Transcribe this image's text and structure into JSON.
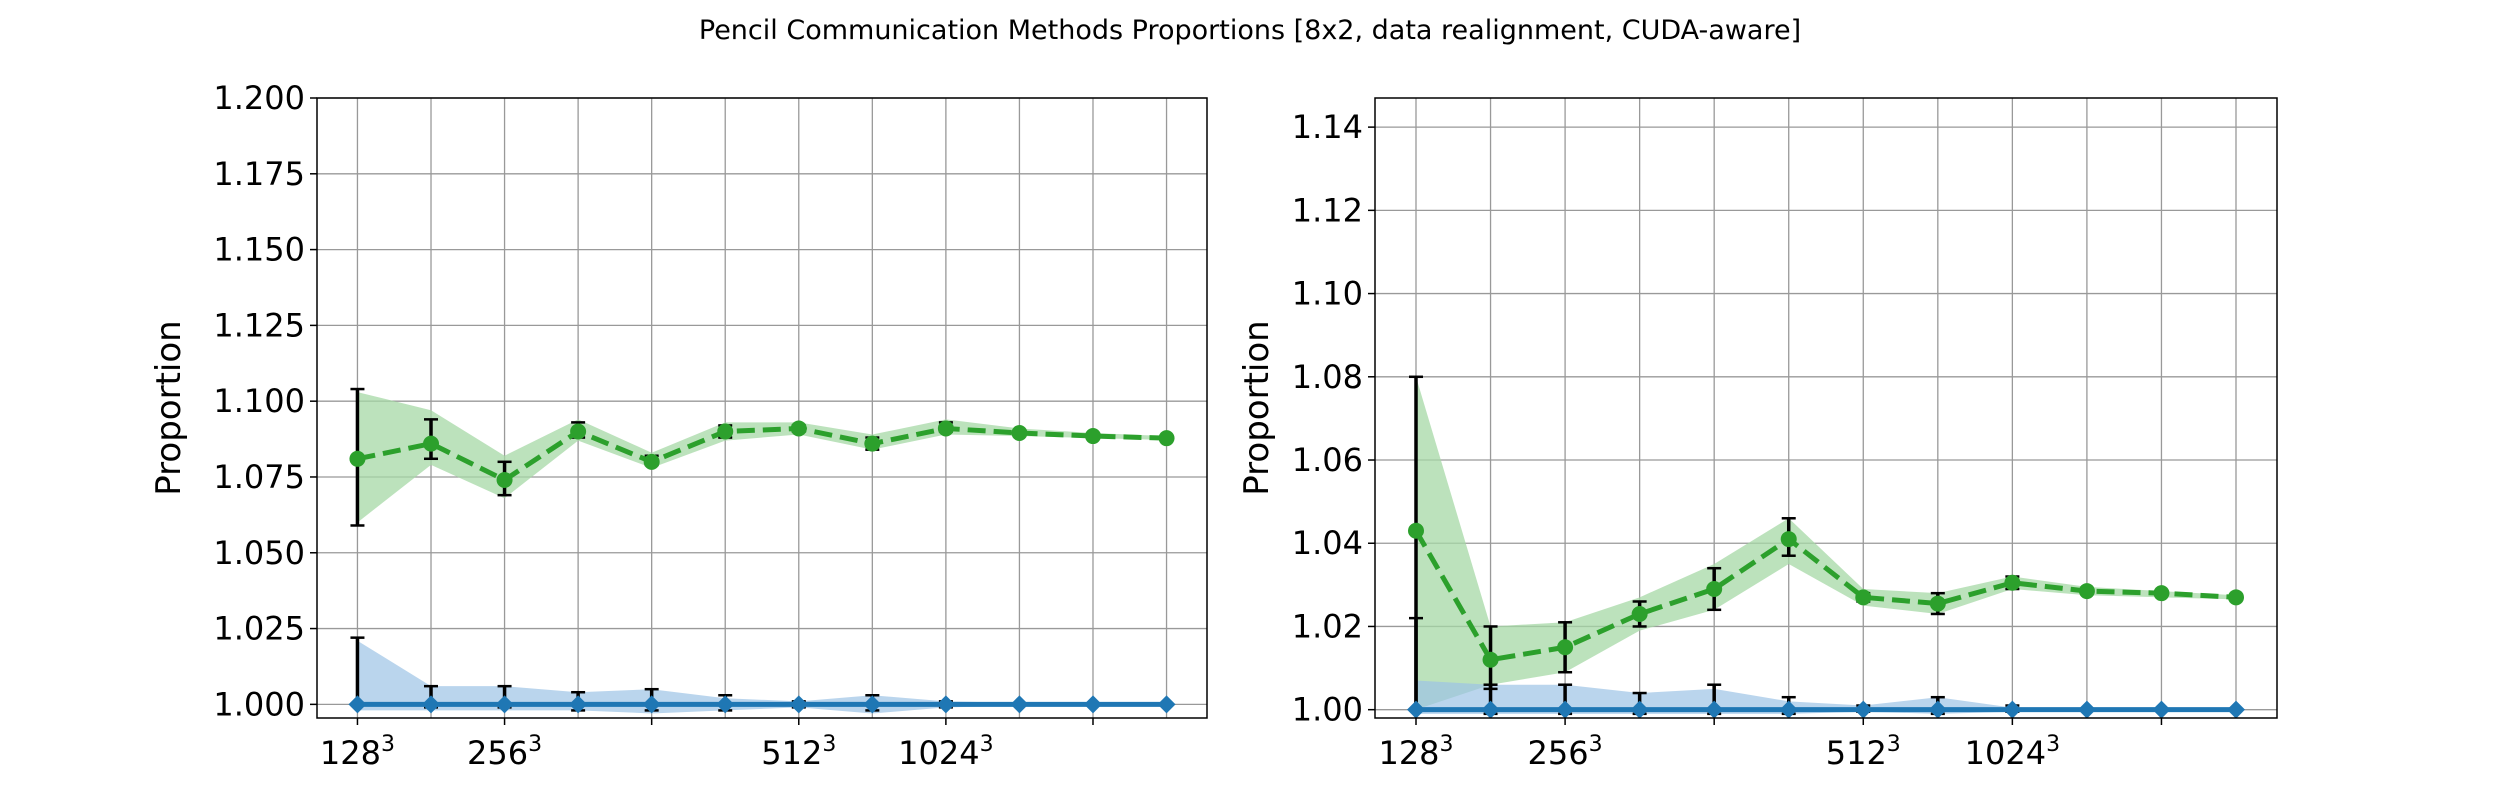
{
  "figure": {
    "title": "Pencil Communication Methods Proportions [8x2, data realignment, CUDA-aware]"
  },
  "colors": {
    "green": "#2ca02c",
    "green_band": "#a6d8a6",
    "blue": "#1f77b4",
    "blue_band": "#9dc3e6",
    "grid": "#999999",
    "errorbar": "#000000"
  },
  "chart_data": [
    {
      "type": "line",
      "ylabel": "Proportion",
      "xlabel": "",
      "x": [
        0,
        1,
        2,
        3,
        4,
        5,
        6,
        7,
        8,
        9,
        10,
        11
      ],
      "xlim": [
        -0.55,
        11.55
      ],
      "ylim": [
        0.9955,
        1.2
      ],
      "xticks": [
        {
          "x": 0,
          "base": "128",
          "exp": "3"
        },
        {
          "x": 2,
          "base": "256",
          "exp": "3"
        },
        {
          "x": 4,
          "base": "",
          "exp": ""
        },
        {
          "x": 6,
          "base": "512",
          "exp": "3"
        },
        {
          "x": 8,
          "base": "1024",
          "exp": "3"
        },
        {
          "x": 10,
          "base": "",
          "exp": ""
        }
      ],
      "yticks": [
        {
          "v": 1.0,
          "label": "1.000"
        },
        {
          "v": 1.025,
          "label": "1.025"
        },
        {
          "v": 1.05,
          "label": "1.050"
        },
        {
          "v": 1.075,
          "label": "1.075"
        },
        {
          "v": 1.1,
          "label": "1.100"
        },
        {
          "v": 1.125,
          "label": "1.125"
        },
        {
          "v": 1.15,
          "label": "1.150"
        },
        {
          "v": 1.175,
          "label": "1.175"
        },
        {
          "v": 1.2,
          "label": "1.200"
        }
      ],
      "grid": true,
      "series": [
        {
          "color": "green",
          "style": "dashed",
          "marker": "circle",
          "values": [
            1.081,
            1.086,
            1.074,
            1.09,
            1.08,
            1.09,
            1.091,
            1.086,
            1.091,
            1.0895,
            1.0885,
            1.0878
          ],
          "err_low": [
            1.059,
            1.081,
            1.069,
            1.088,
            1.079,
            1.088,
            1.09,
            1.084,
            1.09,
            1.0895,
            1.0885,
            1.0878
          ],
          "err_high": [
            1.104,
            1.094,
            1.08,
            1.093,
            1.082,
            1.092,
            1.092,
            1.088,
            1.093,
            1.0895,
            1.0885,
            1.0878
          ],
          "band_low": [
            1.06,
            1.079,
            1.068,
            1.087,
            1.078,
            1.087,
            1.089,
            1.084,
            1.089,
            1.0885,
            1.0878,
            1.0872
          ],
          "band_high": [
            1.103,
            1.097,
            1.082,
            1.094,
            1.083,
            1.093,
            1.093,
            1.089,
            1.094,
            1.091,
            1.0895,
            1.0885
          ]
        },
        {
          "color": "blue",
          "style": "solid",
          "marker": "diamond",
          "values": [
            1.0,
            1.0,
            1.0,
            1.0,
            1.0,
            1.0,
            1.0,
            1.0,
            1.0,
            1.0,
            1.0,
            1.0
          ],
          "err_low": [
            1.0,
            0.999,
            0.999,
            0.998,
            0.998,
            0.998,
            0.999,
            0.998,
            0.999,
            1.0,
            1.0,
            1.0
          ],
          "err_high": [
            1.022,
            1.006,
            1.006,
            1.004,
            1.005,
            1.003,
            1.001,
            1.003,
            1.001,
            1.0,
            1.0,
            1.0
          ],
          "band_low": [
            0.998,
            0.998,
            0.998,
            0.998,
            0.997,
            0.998,
            0.999,
            0.997,
            0.999,
            0.9995,
            0.9995,
            0.9995
          ],
          "band_high": [
            1.021,
            1.006,
            1.006,
            1.004,
            1.005,
            1.002,
            1.001,
            1.003,
            1.001,
            1.0005,
            1.0005,
            1.0005
          ]
        }
      ]
    },
    {
      "type": "line",
      "ylabel": "Proportion",
      "xlabel": "",
      "x": [
        0,
        1,
        2,
        3,
        4,
        5,
        6,
        7,
        8,
        9,
        10,
        11
      ],
      "xlim": [
        -0.55,
        11.55
      ],
      "ylim": [
        0.998,
        1.147
      ],
      "xticks": [
        {
          "x": 0,
          "base": "128",
          "exp": "3"
        },
        {
          "x": 2,
          "base": "256",
          "exp": "3"
        },
        {
          "x": 4,
          "base": "",
          "exp": ""
        },
        {
          "x": 6,
          "base": "512",
          "exp": "3"
        },
        {
          "x": 8,
          "base": "1024",
          "exp": "3"
        },
        {
          "x": 10,
          "base": "",
          "exp": ""
        }
      ],
      "yticks": [
        {
          "v": 1.0,
          "label": "1.00"
        },
        {
          "v": 1.02,
          "label": "1.02"
        },
        {
          "v": 1.04,
          "label": "1.04"
        },
        {
          "v": 1.06,
          "label": "1.06"
        },
        {
          "v": 1.08,
          "label": "1.08"
        },
        {
          "v": 1.1,
          "label": "1.10"
        },
        {
          "v": 1.12,
          "label": "1.12"
        },
        {
          "v": 1.14,
          "label": "1.14"
        }
      ],
      "grid": true,
      "series": [
        {
          "color": "green",
          "style": "dashed",
          "marker": "circle",
          "values": [
            1.043,
            1.012,
            1.015,
            1.023,
            1.029,
            1.041,
            1.027,
            1.0255,
            1.0305,
            1.0285,
            1.028,
            1.027
          ],
          "err_low": [
            1.0,
            1.005,
            1.009,
            1.02,
            1.024,
            1.037,
            1.026,
            1.023,
            1.029,
            1.0285,
            1.028,
            1.027
          ],
          "err_high": [
            1.08,
            1.02,
            1.021,
            1.026,
            1.034,
            1.046,
            1.028,
            1.028,
            1.032,
            1.0285,
            1.028,
            1.027
          ],
          "band_low": [
            1.0,
            1.006,
            1.009,
            1.019,
            1.024,
            1.035,
            1.025,
            1.023,
            1.029,
            1.0275,
            1.027,
            1.0265
          ],
          "band_high": [
            1.08,
            1.02,
            1.021,
            1.027,
            1.035,
            1.046,
            1.029,
            1.028,
            1.032,
            1.0295,
            1.0285,
            1.0275
          ]
        },
        {
          "color": "blue",
          "style": "solid",
          "marker": "diamond",
          "values": [
            1.0,
            1.0,
            1.0,
            1.0,
            1.0,
            1.0,
            1.0,
            1.0,
            1.0,
            1.0,
            1.0,
            1.0
          ],
          "err_low": [
            1.0,
            0.999,
            0.999,
            0.999,
            0.999,
            0.999,
            0.9995,
            0.999,
            0.9995,
            1.0,
            1.0,
            1.0
          ],
          "err_high": [
            1.022,
            1.006,
            1.006,
            1.004,
            1.006,
            1.003,
            1.001,
            1.003,
            1.001,
            1.0,
            1.0,
            1.0
          ],
          "band_low": [
            0.999,
            0.999,
            0.999,
            0.999,
            0.999,
            0.999,
            0.9995,
            0.999,
            0.9995,
            0.9997,
            0.9997,
            0.9997
          ],
          "band_high": [
            1.007,
            1.006,
            1.006,
            1.004,
            1.005,
            1.002,
            1.001,
            1.003,
            1.0005,
            1.0003,
            1.0003,
            1.0003
          ]
        }
      ]
    }
  ]
}
